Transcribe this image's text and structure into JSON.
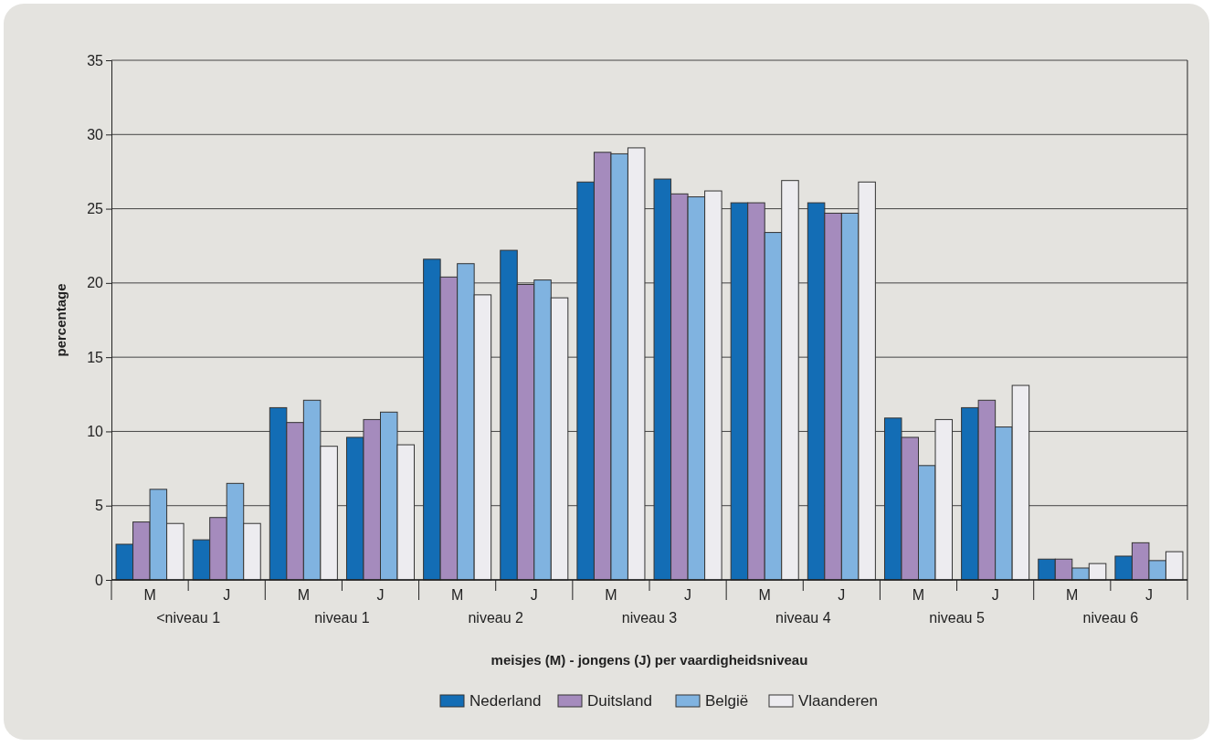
{
  "chart_data": {
    "type": "bar",
    "xlabel": "meisjes (M) - jongens (J) per vaardigheidsniveau",
    "ylabel": "percentage",
    "categories": [
      "M",
      "J",
      "M",
      "J",
      "M",
      "J",
      "M",
      "J",
      "M",
      "J",
      "M",
      "J",
      "M",
      "J"
    ],
    "series": [
      {
        "name": "Nederland",
        "color": "#136db5",
        "values": [
          2.4,
          2.7,
          11.6,
          9.6,
          21.6,
          22.2,
          26.8,
          27.0,
          25.4,
          25.4,
          10.9,
          11.6,
          1.4,
          1.6
        ]
      },
      {
        "name": "Duitsland",
        "color": "#a58bbd",
        "values": [
          3.9,
          4.2,
          10.6,
          10.8,
          20.4,
          19.9,
          28.8,
          26.0,
          25.4,
          24.7,
          9.6,
          12.1,
          1.4,
          2.5
        ]
      },
      {
        "name": "België",
        "color": "#80b3e0",
        "values": [
          6.1,
          6.5,
          12.1,
          11.3,
          21.3,
          20.2,
          28.7,
          25.8,
          23.4,
          24.7,
          7.7,
          10.3,
          0.8,
          1.3
        ]
      },
      {
        "name": "Vlaanderen",
        "color": "#edecf0",
        "values": [
          3.8,
          3.8,
          9.0,
          9.1,
          19.2,
          19.0,
          29.1,
          26.2,
          26.9,
          26.8,
          10.8,
          13.1,
          1.1,
          1.9
        ]
      }
    ],
    "annotations": [
      "<niveau 1",
      "niveau 1",
      "niveau 2",
      "niveau 3",
      "niveau 4",
      "niveau 5",
      "niveau 6"
    ],
    "ylim": [
      0,
      35
    ],
    "yticks": [
      0,
      5,
      10,
      15,
      20,
      25,
      30,
      35
    ],
    "grid": "y",
    "legend": "bottom"
  }
}
